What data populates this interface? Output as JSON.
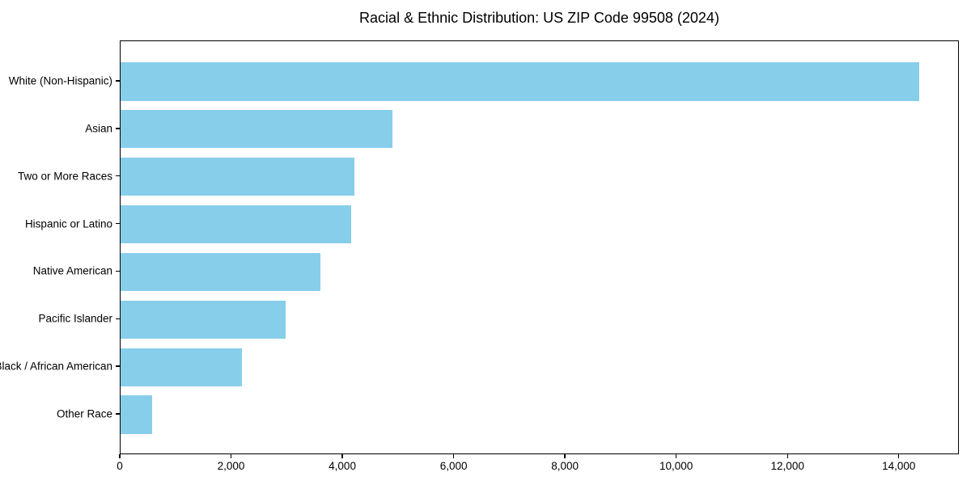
{
  "chart_data": {
    "type": "bar",
    "orientation": "horizontal",
    "title": "Racial & Ethnic Distribution: US ZIP Code 99508 (2024)",
    "categories": [
      "White (Non-Hispanic)",
      "Asian",
      "Two or More Races",
      "Hispanic or Latino",
      "Native American",
      "Pacific Islander",
      "Black / African American",
      "Other Race"
    ],
    "values": [
      14360,
      4890,
      4205,
      4145,
      3590,
      2970,
      2185,
      570
    ],
    "xlabel": "",
    "ylabel": "",
    "xlim": [
      0,
      15080
    ],
    "x_ticks": [
      0,
      2000,
      4000,
      6000,
      8000,
      10000,
      12000,
      14000
    ],
    "x_tick_labels": [
      "0",
      "2,000",
      "4,000",
      "6,000",
      "8,000",
      "10,000",
      "12,000",
      "14,000"
    ],
    "bar_color": "#87CEEB",
    "axis_color": "#000000",
    "background_color": "#FFFFFF",
    "grid": false,
    "legend": "none",
    "bar_height_fraction": 0.8
  }
}
